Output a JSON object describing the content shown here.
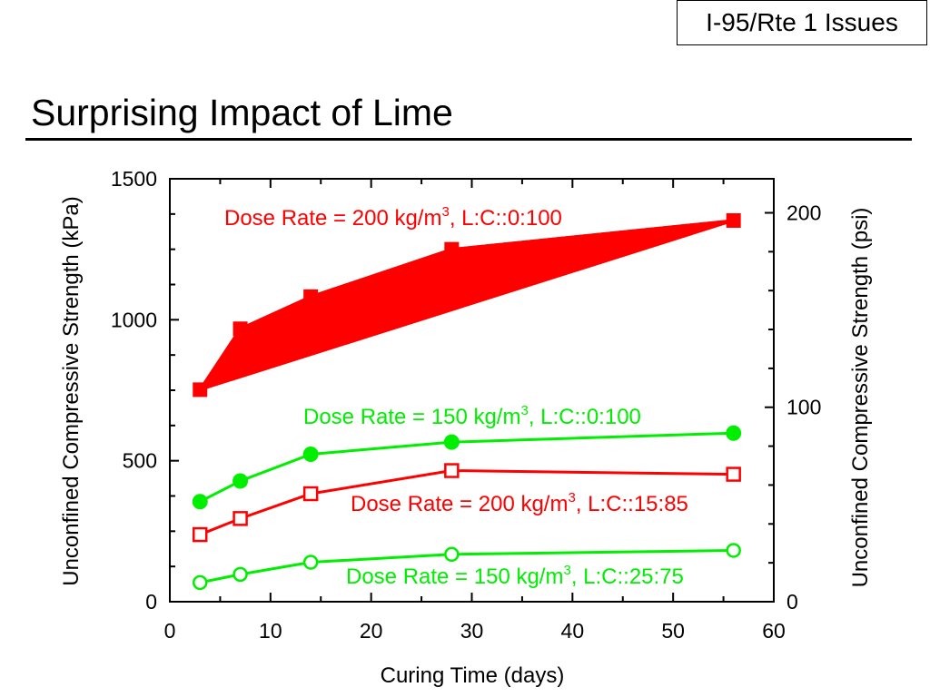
{
  "slide": {
    "tag": "I-95/Rte 1 Issues",
    "title": "Surprising Impact of Lime"
  },
  "chart_data": {
    "type": "line",
    "xlabel": "Curing Time (days)",
    "ylabel": "Unconfined Compressive Strength (kPa)",
    "y2label": "Unconfined Compressive Strength (psi)",
    "xlim": [
      0,
      60
    ],
    "ylim": [
      0,
      1500
    ],
    "y2lim": [
      0,
      217.5
    ],
    "x_ticks": [
      "0",
      "10",
      "20",
      "30",
      "40",
      "50",
      "60"
    ],
    "y_ticks": [
      "0",
      "500",
      "1000",
      "1500"
    ],
    "y2_ticks": [
      "0",
      "100",
      "200"
    ],
    "grid": false,
    "colors": {
      "red": "#ff0000",
      "green": "#00ee00"
    },
    "series": [
      {
        "key": "dose200_lime100",
        "color": "#ff0000",
        "marker": "filled-square",
        "fill_area": true,
        "x": [
          3,
          7,
          14,
          28,
          56
        ],
        "y": [
          752,
          968,
          1082,
          1250,
          1352
        ],
        "label_main": "Dose Rate = 200 kg/m",
        "label_sup": "3",
        "label_tail": ", L:C::0:100"
      },
      {
        "key": "dose150_lime100",
        "color": "#00ee00",
        "marker": "filled-circle",
        "fill_area": false,
        "x": [
          3,
          7,
          14,
          28,
          56
        ],
        "y": [
          355,
          428,
          523,
          566,
          598
        ],
        "label_main": "Dose Rate = 150 kg/m",
        "label_sup": "3",
        "label_tail": ", L:C::0:100"
      },
      {
        "key": "dose200_lime15",
        "color": "#ff0000",
        "marker": "open-square",
        "fill_area": false,
        "x": [
          3,
          7,
          14,
          28,
          56
        ],
        "y": [
          238,
          295,
          383,
          465,
          452
        ],
        "label_main": "Dose Rate = 200 kg/m",
        "label_sup": "3",
        "label_tail": ", L:C::15:85"
      },
      {
        "key": "dose150_lime25",
        "color": "#00ee00",
        "marker": "open-circle",
        "fill_area": false,
        "x": [
          3,
          7,
          14,
          28,
          56
        ],
        "y": [
          68,
          97,
          140,
          168,
          182
        ],
        "label_main": "Dose Rate = 150 kg/m",
        "label_sup": "3",
        "label_tail": ", L:C::25:75"
      }
    ]
  }
}
